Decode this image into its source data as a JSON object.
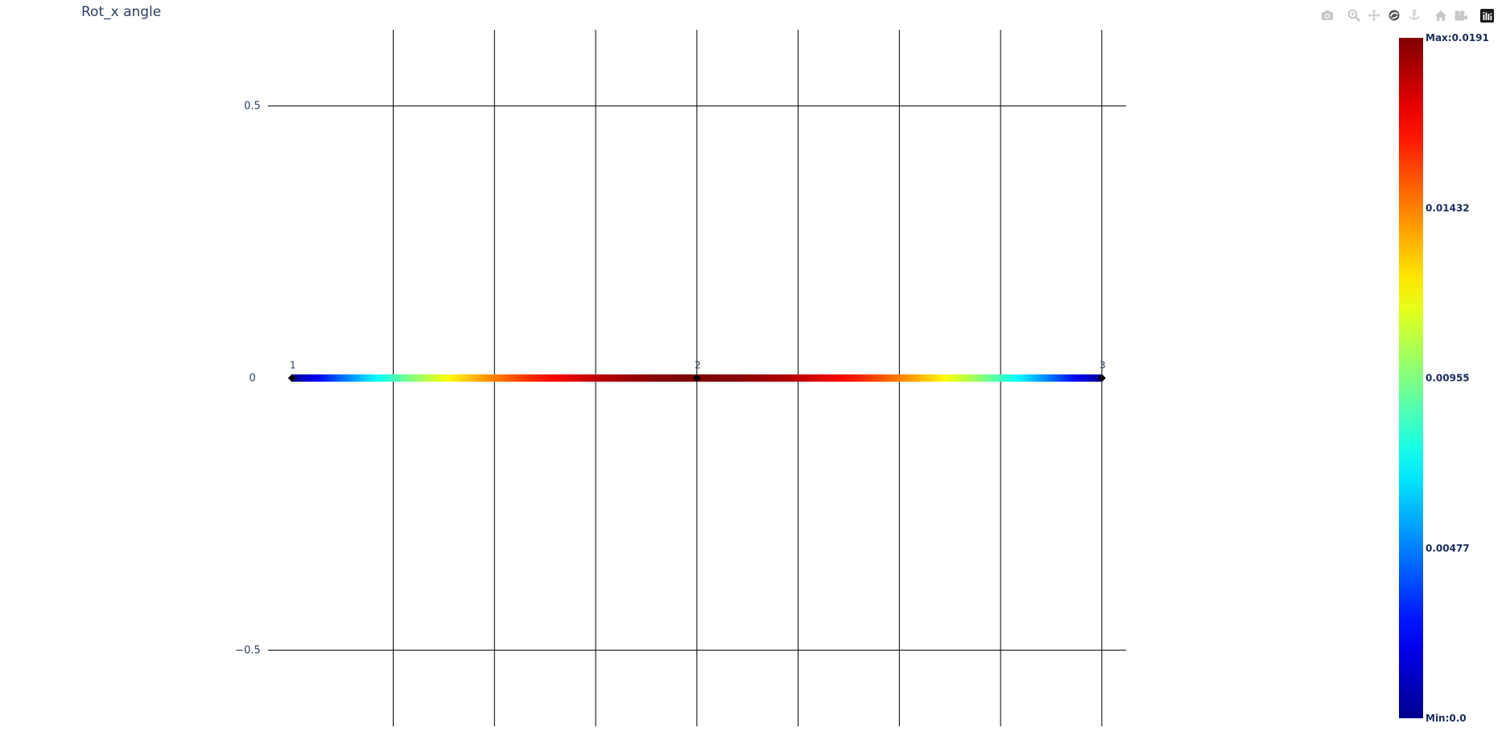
{
  "title": "Rot_x angle",
  "modebar": {
    "buttons": [
      {
        "name": "camera-icon",
        "group": 1
      },
      {
        "name": "zoom-icon",
        "group": 2
      },
      {
        "name": "pan-icon",
        "group": 2
      },
      {
        "name": "orbit-rotation-icon",
        "group": 2
      },
      {
        "name": "turntable-rotation-icon",
        "group": 2
      },
      {
        "name": "home-icon",
        "group": 3
      },
      {
        "name": "camera-last-save-icon",
        "group": 3
      },
      {
        "name": "plotly-logo-icon",
        "group": 4
      }
    ]
  },
  "colors": {
    "axis_text": "#2a3f5f",
    "colorbar_text": "#1a2b5c",
    "grid": "#000000",
    "colorscale": [
      "#00008f",
      "#0000ff",
      "#00ffff",
      "#ffff00",
      "#ff0000",
      "#800000"
    ],
    "marker": "#000000"
  },
  "chart_data": {
    "type": "line",
    "title": "Rot_x angle",
    "nodes": [
      {
        "label": "1",
        "x": 0,
        "y": 0,
        "value": 0.0
      },
      {
        "label": "2",
        "x": 4,
        "y": 0,
        "value": 0.0191
      },
      {
        "label": "3",
        "x": 8,
        "y": 0,
        "value": 0.0
      }
    ],
    "value_profile": "parabolic",
    "xlim": [
      -1.0,
      8.2
    ],
    "ylim": [
      -0.64,
      0.64
    ],
    "x_gridlines": [
      1,
      2,
      3,
      4,
      5,
      6,
      7,
      8
    ],
    "y_ticks": [
      {
        "value": 0.5,
        "label": "0.5"
      },
      {
        "value": 0,
        "label": "0"
      },
      {
        "value": -0.5,
        "label": "−0.5"
      }
    ],
    "colorbar": {
      "min": 0.0,
      "max": 0.0191,
      "colorscale": "Jet",
      "ticks": [
        {
          "value": 0.0191,
          "label": "Max:0.0191"
        },
        {
          "value": 0.01432,
          "label": "0.01432"
        },
        {
          "value": 0.00955,
          "label": "0.00955"
        },
        {
          "value": 0.00477,
          "label": "0.00477"
        },
        {
          "value": 0.0,
          "label": "Min:0.0"
        }
      ]
    },
    "grid": true,
    "legend": "none"
  }
}
